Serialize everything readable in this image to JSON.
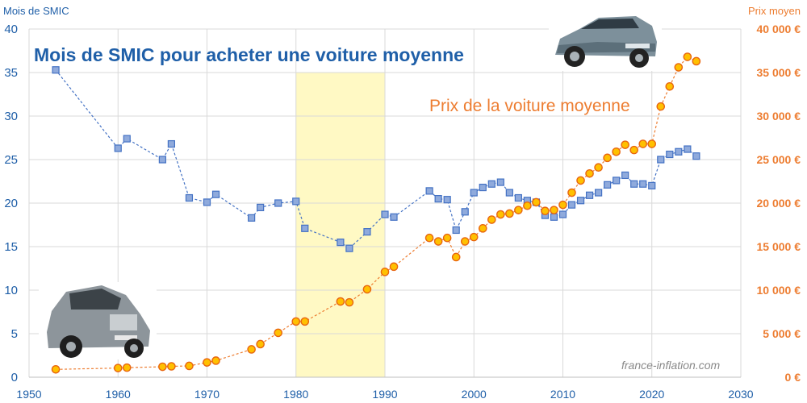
{
  "chart_data": {
    "type": "line",
    "title": "Mois de SMIC pour acheter une voiture moyenne",
    "subtitle": "Prix de la voiture moyenne",
    "watermark": "france-inflation.com",
    "left_axis": {
      "unit_label": "Mois de SMIC",
      "ylim": [
        0,
        40
      ],
      "ticks": [
        "0",
        "5",
        "10",
        "15",
        "20",
        "25",
        "30",
        "35",
        "40"
      ]
    },
    "right_axis": {
      "unit_label": "Prix moyen",
      "ylim": [
        0,
        40000
      ],
      "ticks": [
        "0 €",
        "5 000 €",
        "10 000 €",
        "15 000 €",
        "20 000 €",
        "25 000 €",
        "30 000 €",
        "35 000 €",
        "40 000 €"
      ]
    },
    "x_axis": {
      "xlim": [
        1950,
        2030
      ],
      "ticks": [
        "1950",
        "1960",
        "1970",
        "1980",
        "1990",
        "2000",
        "2010",
        "2020",
        "2030"
      ]
    },
    "highlight_band": {
      "x_start": 1980,
      "x_end": 1990,
      "color": "#fff9c4"
    },
    "grid": true,
    "colors": {
      "smic_series": "#4472c4",
      "price_series": "#ed7d31",
      "marker_fill_price": "#ffc000",
      "marker_fill_smic": "#8faadc",
      "grid": "#d9d9d9"
    },
    "icons": {
      "top_right": "modern-suv-car-photo",
      "bottom_left": "vintage-car-photo"
    },
    "series": [
      {
        "axis": "left",
        "marker": "square",
        "points": [
          [
            1953,
            35.3
          ],
          [
            1960,
            26.3
          ],
          [
            1961,
            27.4
          ],
          [
            1965,
            25.0
          ],
          [
            1966,
            26.8
          ],
          [
            1968,
            20.6
          ],
          [
            1970,
            20.1
          ],
          [
            1971,
            21.0
          ],
          [
            1975,
            18.3
          ],
          [
            1976,
            19.5
          ],
          [
            1978,
            20.0
          ],
          [
            1980,
            20.2
          ],
          [
            1981,
            17.1
          ],
          [
            1985,
            15.5
          ],
          [
            1986,
            14.8
          ],
          [
            1988,
            16.7
          ],
          [
            1990,
            18.7
          ],
          [
            1991,
            18.4
          ],
          [
            1995,
            21.4
          ],
          [
            1996,
            20.5
          ],
          [
            1997,
            20.4
          ],
          [
            1998,
            16.9
          ],
          [
            1999,
            19.0
          ],
          [
            2000,
            21.2
          ],
          [
            2001,
            21.8
          ],
          [
            2002,
            22.2
          ],
          [
            2003,
            22.4
          ],
          [
            2004,
            21.2
          ],
          [
            2005,
            20.6
          ],
          [
            2006,
            20.3
          ],
          [
            2007,
            20.1
          ],
          [
            2008,
            18.6
          ],
          [
            2009,
            18.4
          ],
          [
            2010,
            18.7
          ],
          [
            2011,
            19.8
          ],
          [
            2012,
            20.3
          ],
          [
            2013,
            20.9
          ],
          [
            2014,
            21.2
          ],
          [
            2015,
            22.1
          ],
          [
            2016,
            22.6
          ],
          [
            2017,
            23.2
          ],
          [
            2018,
            22.2
          ],
          [
            2019,
            22.2
          ],
          [
            2020,
            22.0
          ],
          [
            2021,
            25.0
          ],
          [
            2022,
            25.6
          ],
          [
            2023,
            25.9
          ],
          [
            2024,
            26.2
          ],
          [
            2025,
            25.4
          ]
        ]
      },
      {
        "axis": "right",
        "marker": "circle",
        "points": [
          [
            1953,
            900
          ],
          [
            1960,
            1050
          ],
          [
            1961,
            1100
          ],
          [
            1965,
            1200
          ],
          [
            1966,
            1250
          ],
          [
            1968,
            1300
          ],
          [
            1970,
            1700
          ],
          [
            1971,
            1900
          ],
          [
            1975,
            3200
          ],
          [
            1976,
            3800
          ],
          [
            1978,
            5100
          ],
          [
            1980,
            6400
          ],
          [
            1981,
            6400
          ],
          [
            1985,
            8700
          ],
          [
            1986,
            8600
          ],
          [
            1988,
            10100
          ],
          [
            1990,
            12100
          ],
          [
            1991,
            12700
          ],
          [
            1995,
            16000
          ],
          [
            1996,
            15600
          ],
          [
            1997,
            16000
          ],
          [
            1998,
            13800
          ],
          [
            1999,
            15600
          ],
          [
            2000,
            16100
          ],
          [
            2001,
            17100
          ],
          [
            2002,
            18100
          ],
          [
            2003,
            18700
          ],
          [
            2004,
            18800
          ],
          [
            2005,
            19200
          ],
          [
            2006,
            19700
          ],
          [
            2007,
            20100
          ],
          [
            2008,
            19100
          ],
          [
            2009,
            19200
          ],
          [
            2010,
            19800
          ],
          [
            2011,
            21200
          ],
          [
            2012,
            22600
          ],
          [
            2013,
            23400
          ],
          [
            2014,
            24100
          ],
          [
            2015,
            25200
          ],
          [
            2016,
            25900
          ],
          [
            2017,
            26700
          ],
          [
            2018,
            26100
          ],
          [
            2019,
            26800
          ],
          [
            2020,
            26800
          ],
          [
            2021,
            31100
          ],
          [
            2022,
            33400
          ],
          [
            2023,
            35600
          ],
          [
            2024,
            36800
          ],
          [
            2025,
            36300
          ]
        ]
      }
    ]
  }
}
